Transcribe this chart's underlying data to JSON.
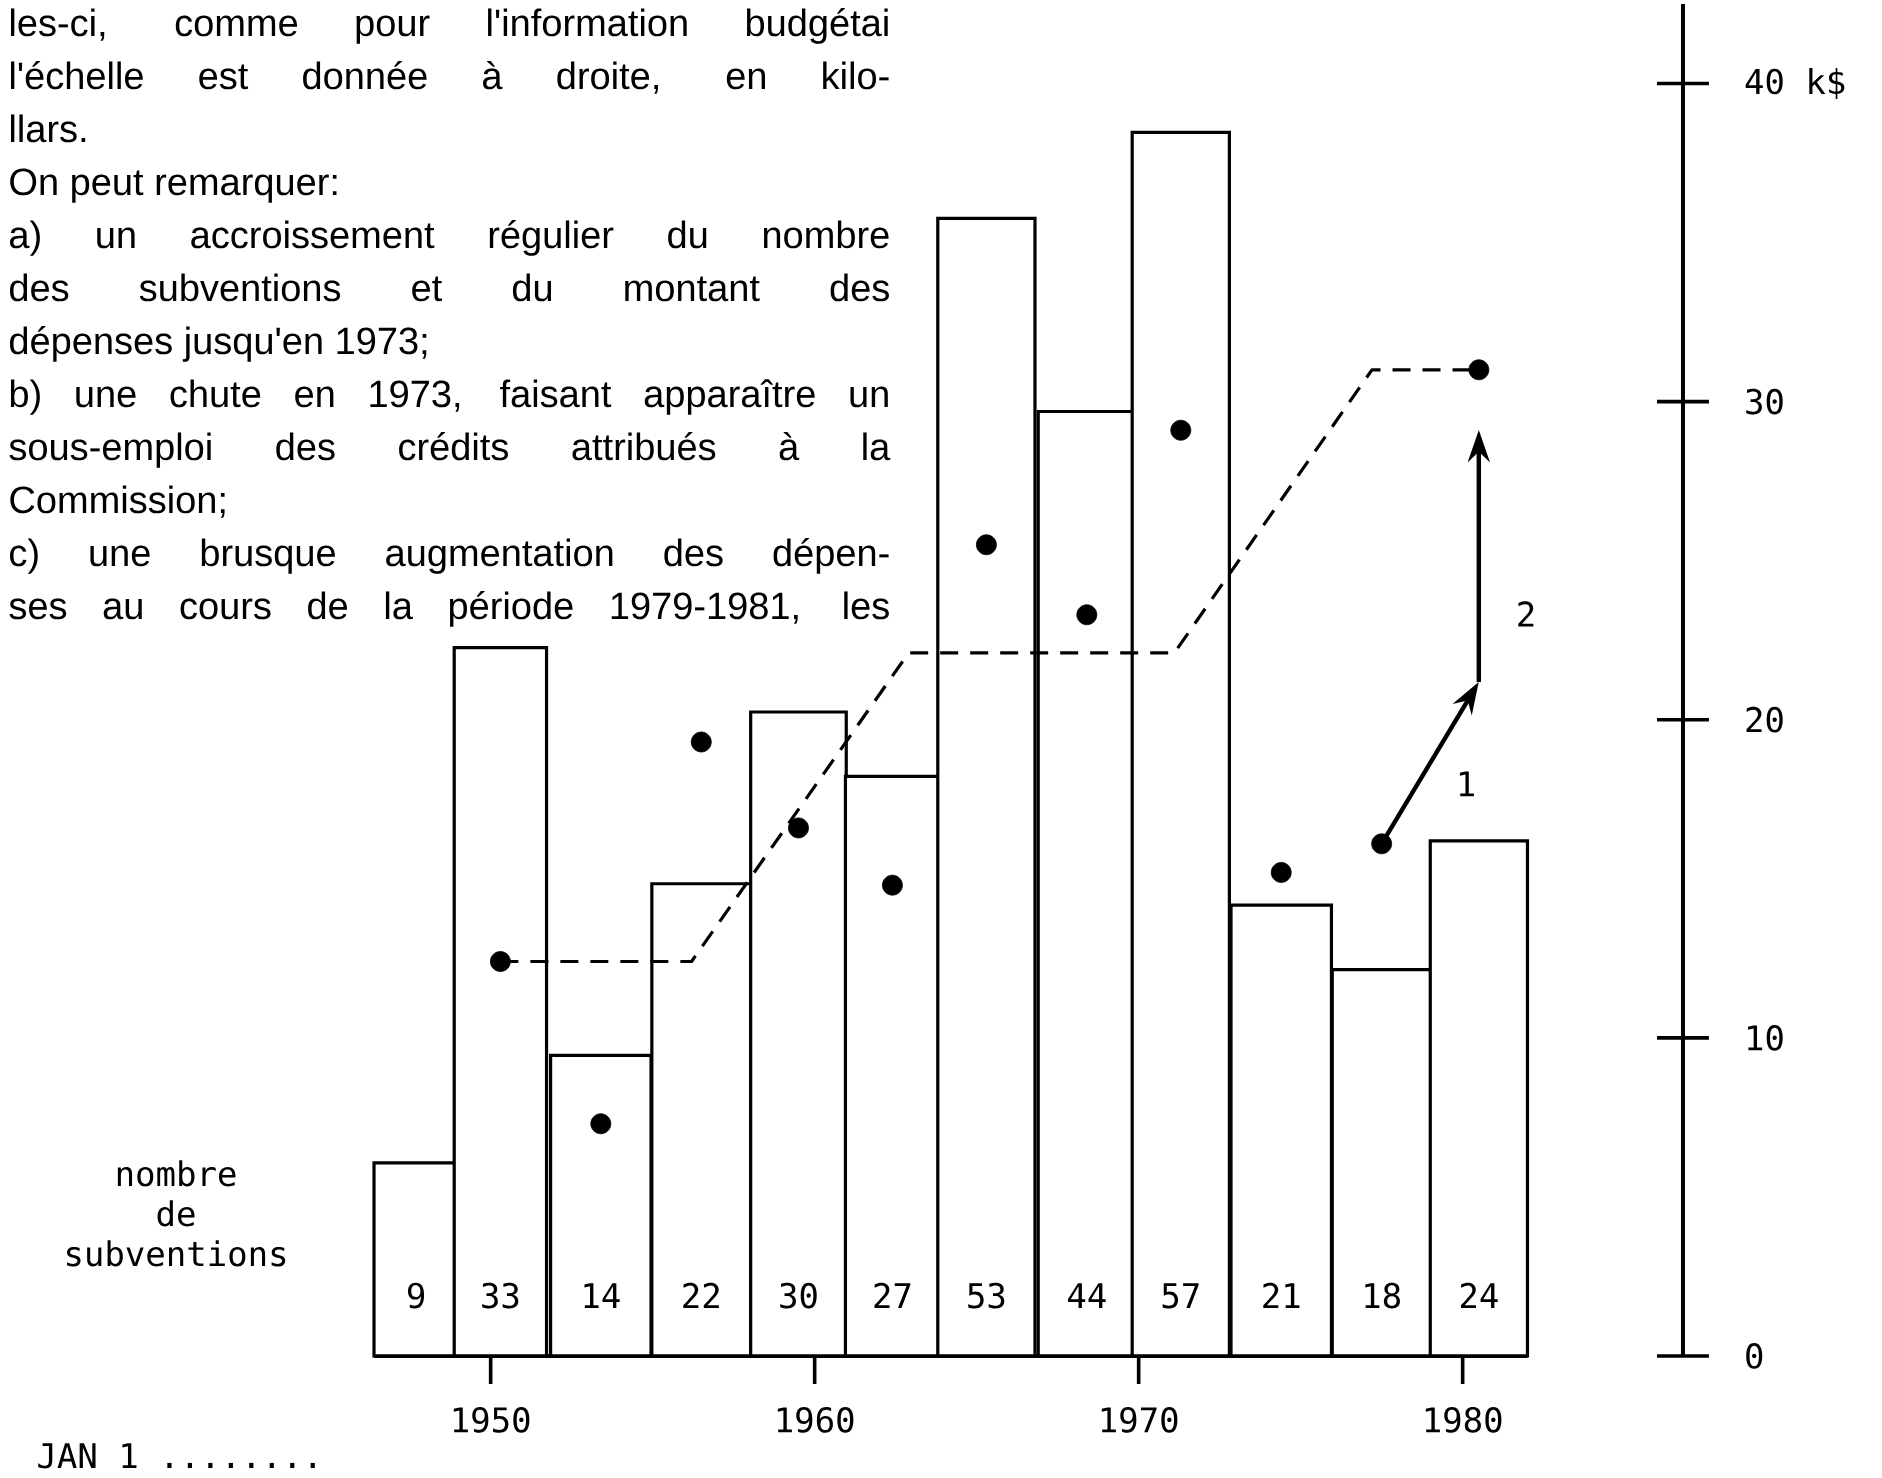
{
  "chart_data": {
    "type": "bar",
    "xlabel": "JAN 1 ........",
    "ylabel": "nombre de subventions",
    "xlim": [
      1946.4,
      1982
    ],
    "xticks": [
      1950,
      1960,
      1970,
      1980
    ],
    "y2lim": [
      0,
      42.5
    ],
    "y2ticks": [
      0,
      10,
      20,
      30,
      {
        "value": 40,
        "label": "40 k$"
      }
    ],
    "annotations": [
      "les-ci, comme pour l'information budgétai",
      "l'échelle est donnée à droite, en kilo-",
      "llars.",
      "On peut remarquer:",
      "a) un accroissement régulier du nombre",
      "des subventions et du montant des",
      "dépenses jusqu'en 1973;",
      "b) une chute en 1973, faisant apparaître un",
      "sous-emploi des crédits attribués à la",
      "Commission;",
      "c) une brusque augmentation des dépen-",
      "ses au cours de la période 1979-1981, les",
      "1",
      "2"
    ],
    "series": [
      {
        "color": "#ffffff",
        "data_labels": true,
        "x": [
          1947.7,
          1950.3,
          1953.4,
          1956.5,
          1959.5,
          1962.4,
          1965.3,
          1968.4,
          1971.3,
          1974.4,
          1977.5,
          1980.5
        ],
        "values": [
          9,
          33,
          14,
          22,
          30,
          27,
          53,
          44,
          57,
          21,
          18,
          24
        ]
      },
      {
        "type": "line",
        "axis": "y2",
        "line_style": "dashed",
        "color": "#000000",
        "x": [
          1950.3,
          1956.2,
          1962.9,
          1971.1,
          1977.2,
          1980.5
        ],
        "values": [
          12.4,
          12.4,
          22.1,
          22.1,
          31.0,
          31.0
        ]
      },
      {
        "type": "scatter",
        "axis": "y2",
        "color": "#000000",
        "x": [
          1950.3,
          1953.4,
          1956.5,
          1959.5,
          1962.4,
          1965.3,
          1968.4,
          1971.3,
          1974.4,
          1977.5,
          1980.5
        ],
        "values": [
          12.4,
          7.3,
          19.3,
          16.6,
          14.8,
          25.5,
          23.3,
          29.1,
          15.2,
          16.1,
          31.0
        ]
      }
    ]
  }
}
